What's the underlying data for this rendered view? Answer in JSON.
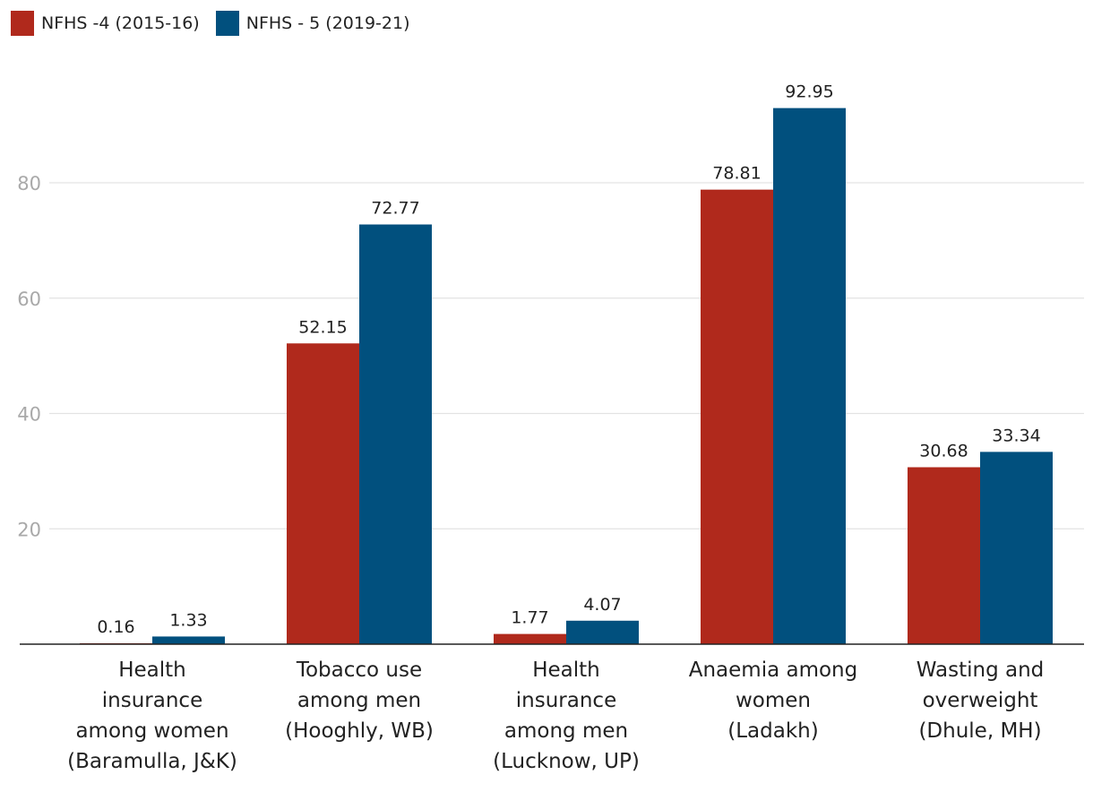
{
  "chart_data": {
    "type": "bar",
    "categories": [
      [
        "Health",
        "insurance",
        "among women",
        "(Baramulla, J&K)"
      ],
      [
        "Tobacco use",
        "among men",
        "(Hooghly, WB)"
      ],
      [
        "Health",
        "insurance",
        "among men",
        "(Lucknow, UP)"
      ],
      [
        "Anaemia among",
        "women",
        "(Ladakh)"
      ],
      [
        "Wasting and",
        "overweight",
        "(Dhule, MH)"
      ]
    ],
    "series": [
      {
        "name": "NFHS -4 (2015-16)",
        "color": "#b0291c",
        "values": [
          0.16,
          52.15,
          1.77,
          78.81,
          30.68
        ]
      },
      {
        "name": "NFHS - 5 (2019-21)",
        "color": "#01507e",
        "values": [
          1.33,
          72.77,
          4.07,
          92.95,
          33.34
        ]
      }
    ],
    "value_labels": [
      [
        "0.16",
        "52.15",
        "1.77",
        "78.81",
        "30.68"
      ],
      [
        "1.33",
        "72.77",
        "4.07",
        "92.95",
        "33.34"
      ]
    ],
    "yticks": [
      20,
      40,
      60,
      80
    ],
    "ytick_labels": [
      "20",
      "40",
      "60",
      "80"
    ],
    "ylim": [
      0,
      100
    ],
    "title": "",
    "xlabel": "",
    "ylabel": "",
    "grid": true,
    "legend_position": "top-left"
  }
}
